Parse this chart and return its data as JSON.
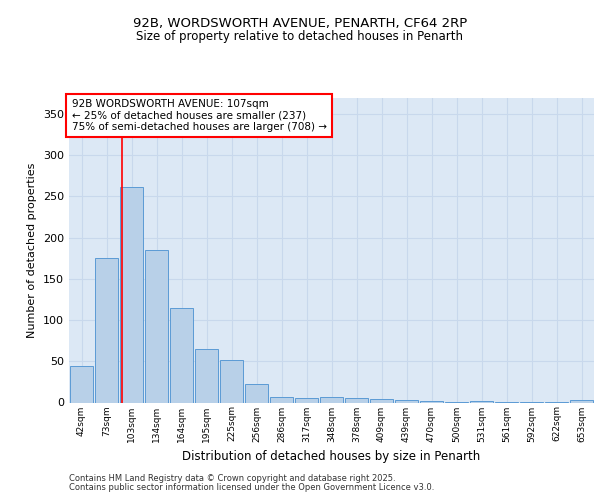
{
  "title1": "92B, WORDSWORTH AVENUE, PENARTH, CF64 2RP",
  "title2": "Size of property relative to detached houses in Penarth",
  "xlabel": "Distribution of detached houses by size in Penarth",
  "ylabel": "Number of detached properties",
  "bar_labels": [
    "42sqm",
    "73sqm",
    "103sqm",
    "134sqm",
    "164sqm",
    "195sqm",
    "225sqm",
    "256sqm",
    "286sqm",
    "317sqm",
    "348sqm",
    "378sqm",
    "409sqm",
    "439sqm",
    "470sqm",
    "500sqm",
    "531sqm",
    "561sqm",
    "592sqm",
    "622sqm",
    "653sqm"
  ],
  "bar_values": [
    44,
    175,
    262,
    185,
    115,
    65,
    52,
    23,
    7,
    6,
    7,
    5,
    4,
    3,
    2,
    1,
    2,
    1,
    1,
    1,
    3
  ],
  "bar_color": "#b8d0e8",
  "bar_edge_color": "#5b9bd5",
  "annotation_text": "92B WORDSWORTH AVENUE: 107sqm\n← 25% of detached houses are smaller (237)\n75% of semi-detached houses are larger (708) →",
  "annotation_box_color": "white",
  "annotation_box_edge": "red",
  "vline_color": "red",
  "ylim": [
    0,
    370
  ],
  "yticks": [
    0,
    50,
    100,
    150,
    200,
    250,
    300,
    350
  ],
  "grid_color": "#c8d8ec",
  "bg_color": "#dce8f5",
  "footer1": "Contains HM Land Registry data © Crown copyright and database right 2025.",
  "footer2": "Contains public sector information licensed under the Open Government Licence v3.0."
}
